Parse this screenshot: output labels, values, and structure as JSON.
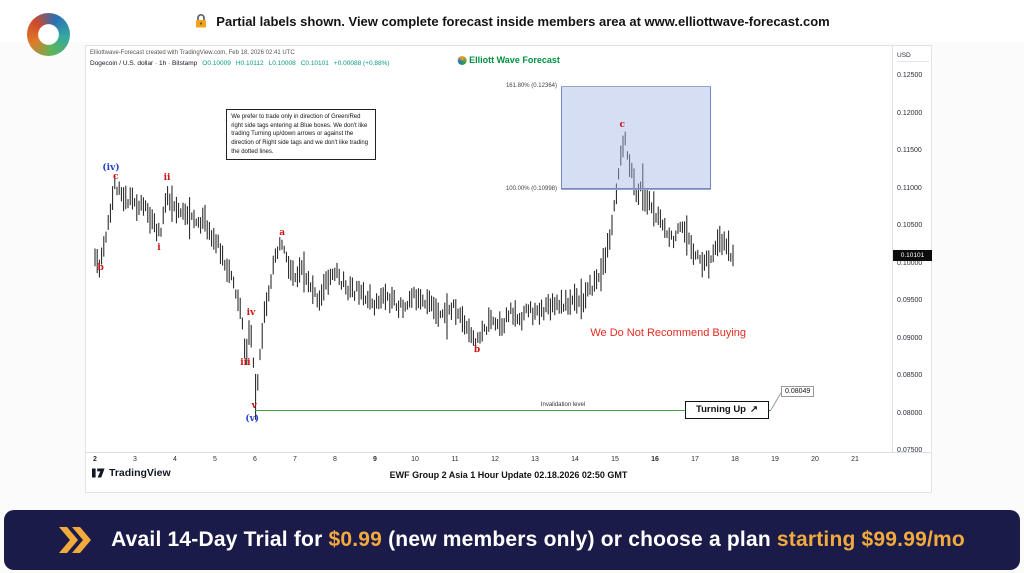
{
  "top_bar": {
    "text": "Partial labels shown. View complete forecast inside members area at www.elliottwave-forecast.com"
  },
  "watermark": {
    "text": "Elliott Wave Forecast"
  },
  "chart_header": {
    "credit": "Elliottwave-Forecast created with TradingView.com, Feb 18, 2026 02:41 UTC",
    "symbol": "Dogecoin / U.S. dollar · 1h · Bitstamp",
    "o": "O0.10009",
    "h": "H0.10112",
    "l": "L0.10008",
    "c": "C0.10101",
    "change": "+0.00088 (+0.88%)"
  },
  "chart_data": {
    "type": "candlestick",
    "title": "Dogecoin / U.S. dollar · 1h · Bitstamp",
    "y_axis_title": "USD",
    "price_range": [
      0.075,
      0.125
    ],
    "y_ticks": [
      "0.12500",
      "0.12000",
      "0.11500",
      "0.11000",
      "0.10500",
      "0.10000",
      "0.09500",
      "0.09000",
      "0.08500",
      "0.08000",
      "0.07500"
    ],
    "x_ticks": [
      "2",
      "3",
      "4",
      "5",
      "6",
      "7",
      "8",
      "9",
      "10",
      "11",
      "12",
      "13",
      "14",
      "15",
      "16",
      "17",
      "18",
      "19",
      "20",
      "21"
    ],
    "x_bold": [
      "2",
      "9",
      "16"
    ],
    "current_price": "0.10101",
    "ohlc": {
      "open": 0.10009,
      "high": 0.10112,
      "low": 0.10008,
      "close": 0.10101,
      "change": "+0.00088",
      "change_pct": "+0.88%"
    },
    "price_path": [
      [
        2.0,
        0.1008
      ],
      [
        2.1,
        0.0997
      ],
      [
        2.2,
        0.1018
      ],
      [
        2.35,
        0.1062
      ],
      [
        2.5,
        0.1106
      ],
      [
        2.62,
        0.1092
      ],
      [
        2.75,
        0.1082
      ],
      [
        2.9,
        0.1091
      ],
      [
        3.05,
        0.1072
      ],
      [
        3.2,
        0.108
      ],
      [
        3.35,
        0.1062
      ],
      [
        3.5,
        0.1047
      ],
      [
        3.62,
        0.1038
      ],
      [
        3.78,
        0.1086
      ],
      [
        3.92,
        0.1078
      ],
      [
        4.1,
        0.1064
      ],
      [
        4.3,
        0.1071
      ],
      [
        4.5,
        0.1052
      ],
      [
        4.7,
        0.1059
      ],
      [
        4.9,
        0.1041
      ],
      [
        5.1,
        0.1021
      ],
      [
        5.3,
        0.0996
      ],
      [
        5.5,
        0.0966
      ],
      [
        5.65,
        0.0932
      ],
      [
        5.78,
        0.0874
      ],
      [
        5.88,
        0.0922
      ],
      [
        5.95,
        0.0868
      ],
      [
        6.03,
        0.0812
      ],
      [
        6.12,
        0.0882
      ],
      [
        6.25,
        0.0941
      ],
      [
        6.4,
        0.0981
      ],
      [
        6.55,
        0.1012
      ],
      [
        6.68,
        0.1027
      ],
      [
        6.82,
        0.0998
      ],
      [
        7.0,
        0.0978
      ],
      [
        7.2,
        0.0991
      ],
      [
        7.4,
        0.0964
      ],
      [
        7.6,
        0.0953
      ],
      [
        7.8,
        0.0976
      ],
      [
        8.0,
        0.0989
      ],
      [
        8.2,
        0.0974
      ],
      [
        8.45,
        0.0961
      ],
      [
        8.65,
        0.0969
      ],
      [
        8.85,
        0.0951
      ],
      [
        9.05,
        0.0946
      ],
      [
        9.25,
        0.0957
      ],
      [
        9.5,
        0.0947
      ],
      [
        9.7,
        0.0941
      ],
      [
        9.9,
        0.0953
      ],
      [
        10.1,
        0.0959
      ],
      [
        10.3,
        0.0949
      ],
      [
        10.55,
        0.0939
      ],
      [
        10.75,
        0.0931
      ],
      [
        10.95,
        0.0941
      ],
      [
        11.15,
        0.0929
      ],
      [
        11.35,
        0.0913
      ],
      [
        11.55,
        0.0893
      ],
      [
        11.75,
        0.0912
      ],
      [
        11.95,
        0.0927
      ],
      [
        12.15,
        0.0919
      ],
      [
        12.4,
        0.0934
      ],
      [
        12.6,
        0.0926
      ],
      [
        12.85,
        0.0939
      ],
      [
        13.05,
        0.0931
      ],
      [
        13.3,
        0.0944
      ],
      [
        13.55,
        0.0949
      ],
      [
        13.8,
        0.0944
      ],
      [
        14.0,
        0.0956
      ],
      [
        14.2,
        0.0951
      ],
      [
        14.4,
        0.0967
      ],
      [
        14.6,
        0.0983
      ],
      [
        14.75,
        0.1004
      ],
      [
        14.9,
        0.1043
      ],
      [
        15.05,
        0.1096
      ],
      [
        15.15,
        0.1139
      ],
      [
        15.22,
        0.1167
      ],
      [
        15.32,
        0.1148
      ],
      [
        15.45,
        0.1112
      ],
      [
        15.55,
        0.1089
      ],
      [
        15.65,
        0.1104
      ],
      [
        15.78,
        0.1083
      ],
      [
        15.9,
        0.1079
      ],
      [
        16.05,
        0.106
      ],
      [
        16.25,
        0.1047
      ],
      [
        16.45,
        0.1034
      ],
      [
        16.65,
        0.1044
      ],
      [
        16.85,
        0.1029
      ],
      [
        17.05,
        0.1011
      ],
      [
        17.25,
        0.0999
      ],
      [
        17.45,
        0.1013
      ],
      [
        17.65,
        0.1031
      ],
      [
        17.85,
        0.1017
      ],
      [
        18.0,
        0.101
      ]
    ],
    "wave_labels": [
      {
        "text": "(iv)",
        "day": 2.4,
        "price": 0.1128,
        "color": "#2441c9"
      },
      {
        "text": "c",
        "day": 2.52,
        "price": 0.1116,
        "color": "#cc1414"
      },
      {
        "text": "b",
        "day": 2.14,
        "price": 0.0994,
        "color": "#cc1414"
      },
      {
        "text": "i",
        "day": 3.6,
        "price": 0.1021,
        "color": "#cc1414"
      },
      {
        "text": "ii",
        "day": 3.8,
        "price": 0.1114,
        "color": "#cc1414"
      },
      {
        "text": "a",
        "day": 6.68,
        "price": 0.1041,
        "color": "#cc1414"
      },
      {
        "text": "iv",
        "day": 5.9,
        "price": 0.0934,
        "color": "#cc1414"
      },
      {
        "text": "iii",
        "day": 5.76,
        "price": 0.0867,
        "color": "#cc1414"
      },
      {
        "text": "v",
        "day": 5.98,
        "price": 0.081,
        "color": "#cc1414"
      },
      {
        "text": "(v)",
        "day": 5.93,
        "price": 0.0793,
        "color": "#2441c9"
      },
      {
        "text": "b",
        "day": 11.55,
        "price": 0.0885,
        "color": "#cc1414"
      },
      {
        "text": "c",
        "day": 15.18,
        "price": 0.1185,
        "color": "#cc1414"
      }
    ],
    "fib_levels": [
      {
        "label": "161.80% (0.12364)",
        "price": 0.12364
      },
      {
        "label": "100.00% (0.10998)",
        "price": 0.10998
      }
    ],
    "blue_box": {
      "day_start": 13.65,
      "day_end": 17.4,
      "price_low": 0.10998,
      "price_high": 0.12364
    },
    "invalidation": {
      "label": "Invalidation level",
      "price": 0.08049,
      "tag": "0.08049",
      "day_start": 6.0,
      "day_end": 18.9,
      "label_day": 13.7
    },
    "turning_up": {
      "label": "Turning Up",
      "arrow": "↗"
    },
    "warning": {
      "text": "We Do Not Recommend Buying",
      "day": 16.33,
      "price": 0.0907
    },
    "note_box": {
      "text": "We prefer to trade only in direction of Green/Red right side tags entering at Blue boxes. We don't like trading Turning up/down arrows or against the direction of Right side tags and we don't like trading the dotted lines.",
      "day_start": 5.28,
      "price_top": 0.1206
    }
  },
  "footer": {
    "caption": "EWF Group 2 Asia 1 Hour Update 02.18.2026 02:50 GMT",
    "tradingview": "TradingView"
  },
  "banner": {
    "pre": "Avail 14-Day Trial for ",
    "price": "$0.99",
    "mid": " (new members only) or choose a plan ",
    "highlight": "starting $99.99/mo"
  }
}
